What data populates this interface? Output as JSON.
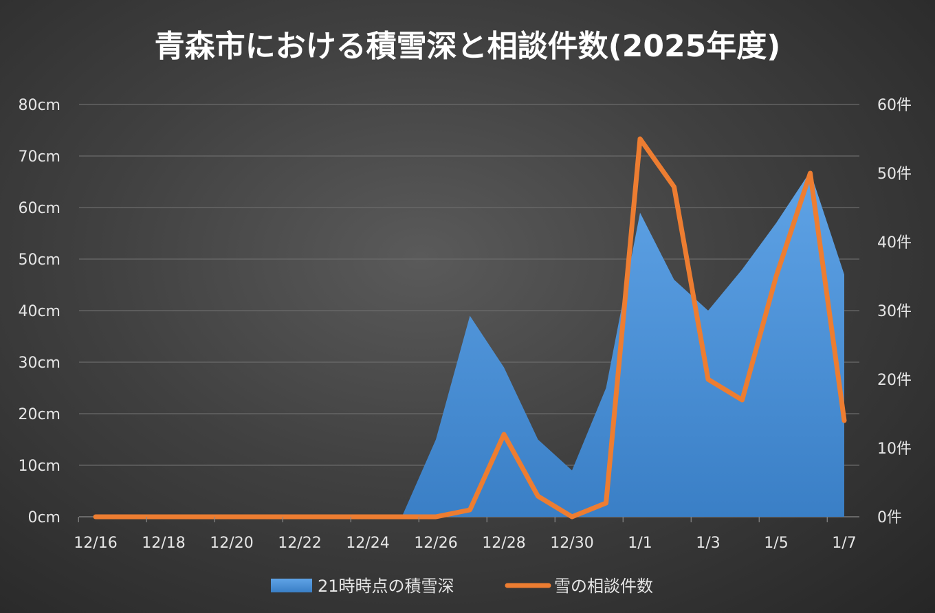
{
  "chart_data": {
    "type": "area",
    "title": "青森市における積雪深と相談件数(2025年度)",
    "x": [
      "12/16",
      "12/17",
      "12/18",
      "12/19",
      "12/20",
      "12/21",
      "12/22",
      "12/23",
      "12/24",
      "12/25",
      "12/26",
      "12/27",
      "12/28",
      "12/29",
      "12/30",
      "12/31",
      "1/1",
      "1/2",
      "1/3",
      "1/4",
      "1/5",
      "1/6",
      "1/7"
    ],
    "x_tick_labels": [
      "12/16",
      "12/18",
      "12/20",
      "12/22",
      "12/24",
      "12/26",
      "12/28",
      "12/30",
      "1/1",
      "1/3",
      "1/5",
      "1/7"
    ],
    "series": [
      {
        "name": "21時時点の積雪深",
        "type": "area",
        "axis": "left",
        "color": "#4a90d9",
        "values": [
          0,
          0,
          0,
          0,
          0,
          0,
          0,
          0,
          0,
          0,
          15,
          39,
          29,
          15,
          9,
          25,
          59,
          46,
          40,
          48,
          57,
          67,
          47
        ]
      },
      {
        "name": "雪の相談件数",
        "type": "line",
        "axis": "right",
        "color": "#ed7d31",
        "values": [
          0,
          0,
          0,
          0,
          0,
          0,
          0,
          0,
          0,
          0,
          0,
          1,
          12,
          3,
          0,
          2,
          55,
          48,
          20,
          17,
          35,
          50,
          14
        ]
      }
    ],
    "y_left": {
      "min": 0,
      "max": 80,
      "step": 10,
      "tick_labels": [
        "0cm",
        "10cm",
        "20cm",
        "30cm",
        "40cm",
        "50cm",
        "60cm",
        "70cm",
        "80cm"
      ]
    },
    "y_right": {
      "min": 0,
      "max": 60,
      "step": 10,
      "tick_labels": [
        "0件",
        "10件",
        "20件",
        "30件",
        "40件",
        "50件",
        "60件"
      ]
    },
    "grid": true,
    "legend_position": "bottom"
  }
}
